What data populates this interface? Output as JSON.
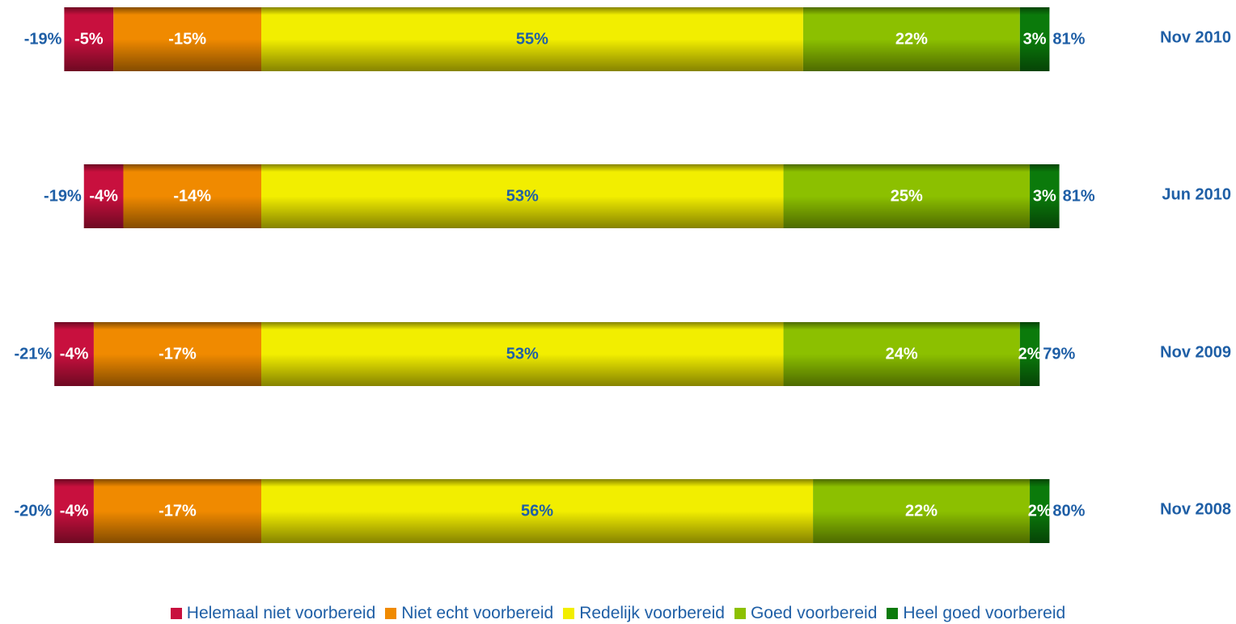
{
  "chart_data": {
    "type": "bar",
    "orientation": "horizontal",
    "stacked": true,
    "diverging": true,
    "categories": [
      "Nov 2010",
      "Jun 2010",
      "Nov 2009",
      "Nov 2008"
    ],
    "series": [
      {
        "name": "Helemaal niet voorbereid",
        "color": "#c8103e",
        "values": [
          -5,
          -4,
          -4,
          -4
        ],
        "labels": [
          "-5%",
          "-4%",
          "-4%",
          "-4%"
        ]
      },
      {
        "name": "Niet echt voorbereid",
        "color": "#f08a00",
        "values": [
          -15,
          -14,
          -17,
          -17
        ],
        "labels": [
          "-15%",
          "-14%",
          "-17%",
          "-17%"
        ]
      },
      {
        "name": "Redelijk voorbereid",
        "color": "#f2ee00",
        "values": [
          55,
          53,
          53,
          56
        ],
        "labels": [
          "55%",
          "53%",
          "53%",
          "56%"
        ]
      },
      {
        "name": "Goed voorbereid",
        "color": "#8cc000",
        "values": [
          22,
          25,
          24,
          22
        ],
        "labels": [
          "22%",
          "25%",
          "24%",
          "22%"
        ]
      },
      {
        "name": "Heel goed voorbereid",
        "color": "#0b7a0b",
        "values": [
          3,
          3,
          2,
          2
        ],
        "labels": [
          "3%",
          "3%",
          "2%",
          "2%"
        ]
      }
    ],
    "negative_totals": [
      "-19%",
      "-19%",
      "-21%",
      "-20%"
    ],
    "positive_totals": [
      "81%",
      "81%",
      "79%",
      "80%"
    ],
    "legend_position": "bottom",
    "grid": false
  }
}
